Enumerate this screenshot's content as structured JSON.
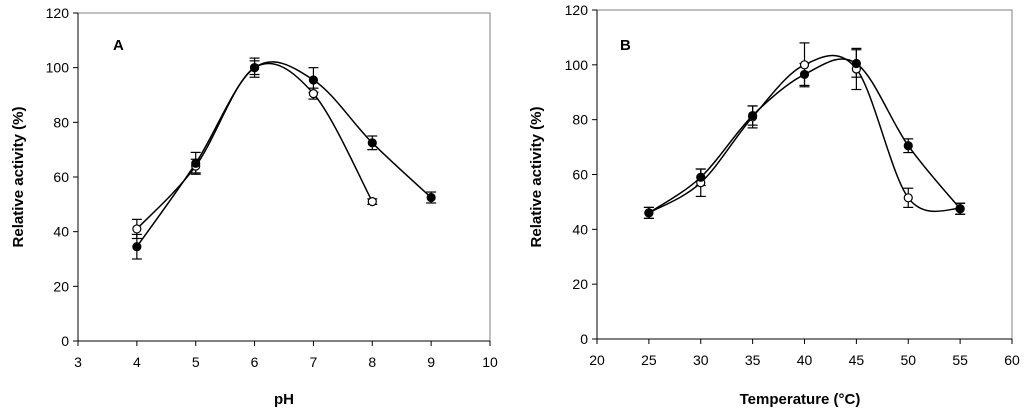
{
  "chart_data": [
    {
      "type": "line",
      "panel_label": "A",
      "title": "",
      "xlabel": "pH",
      "ylabel": "Relative activity (%)",
      "xlim": [
        3,
        10
      ],
      "ylim": [
        0,
        120
      ],
      "xticks": [
        "3",
        "4",
        "5",
        "6",
        "7",
        "8",
        "9",
        "10"
      ],
      "yticks": [
        "0",
        "20",
        "40",
        "60",
        "80",
        "100",
        "120"
      ],
      "grid": false,
      "series": [
        {
          "name": "open circles",
          "marker": "open-circle",
          "x": [
            4,
            5,
            6,
            7,
            8
          ],
          "y": [
            41,
            64,
            100,
            90.5,
            51
          ],
          "err": [
            3.5,
            2.5,
            2.5,
            2,
            1
          ]
        },
        {
          "name": "filled circles",
          "marker": "filled-circle",
          "x": [
            4,
            5,
            6,
            7,
            8,
            9
          ],
          "y": [
            34.5,
            65,
            100,
            95.5,
            72.5,
            52.5
          ],
          "err": [
            4.5,
            4,
            3.5,
            4.5,
            2.5,
            2
          ]
        }
      ]
    },
    {
      "type": "line",
      "panel_label": "B",
      "title": "",
      "xlabel": "Temperature (°C)",
      "ylabel": "Relative activity (%)",
      "xlim": [
        20,
        60
      ],
      "ylim": [
        0,
        120
      ],
      "xticks": [
        "20",
        "25",
        "30",
        "35",
        "40",
        "45",
        "50",
        "55",
        "60"
      ],
      "yticks": [
        "0",
        "20",
        "40",
        "60",
        "80",
        "100",
        "120"
      ],
      "grid": false,
      "series": [
        {
          "name": "open circles",
          "marker": "open-circle",
          "x": [
            25,
            30,
            35,
            40,
            45,
            50,
            55
          ],
          "y": [
            46,
            57,
            81,
            100,
            98.5,
            51.5,
            47.5
          ],
          "err": [
            2,
            5,
            4,
            8,
            7.5,
            3.5,
            2
          ]
        },
        {
          "name": "filled circles",
          "marker": "filled-circle",
          "x": [
            25,
            30,
            35,
            40,
            45,
            50,
            55
          ],
          "y": [
            46,
            59,
            81.5,
            96.5,
            100.5,
            70.5,
            47.5
          ],
          "err": [
            2,
            3,
            3.5,
            4,
            5,
            2.5,
            2
          ]
        }
      ]
    }
  ]
}
